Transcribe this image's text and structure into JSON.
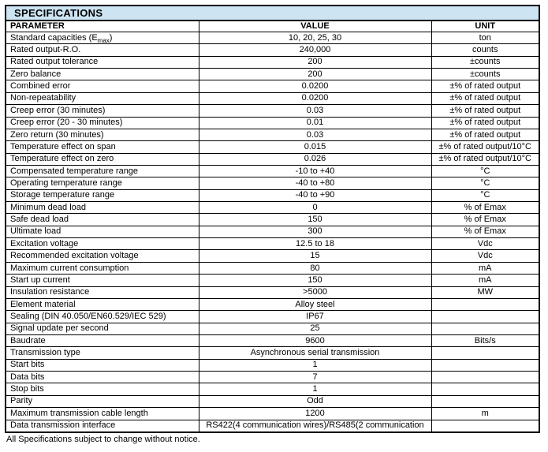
{
  "page": {
    "title": "SPECIFICATIONS",
    "footnote": "All Specifications subject to change without notice."
  },
  "colors": {
    "title_bar_bg": "#cde4f2",
    "border": "#000000",
    "text": "#000000"
  },
  "table": {
    "columns": [
      "PARAMETER",
      "VALUE",
      "UNIT"
    ],
    "rows": [
      {
        "parameter": "Standard capacities (E",
        "parameter_sub": "max",
        "parameter_end": ")",
        "value": "10, 20, 25, 30",
        "unit": "ton"
      },
      {
        "parameter": "Rated output-R.O.",
        "value": "240,000",
        "unit": "counts"
      },
      {
        "parameter": "Rated output tolerance",
        "value": "200",
        "unit": "±counts"
      },
      {
        "parameter": "Zero balance",
        "value": "200",
        "unit": "±counts"
      },
      {
        "parameter": "Combined error",
        "value": "0.0200",
        "unit": "±% of rated output"
      },
      {
        "parameter": "Non-repeatability",
        "value": "0.0200",
        "unit": "±% of rated output"
      },
      {
        "parameter": "Creep error (30 minutes)",
        "value": "0.03",
        "unit": "±% of rated output"
      },
      {
        "parameter": "Creep error (20 - 30 minutes)",
        "value": "0.01",
        "unit": "±% of rated output"
      },
      {
        "parameter": "Zero return (30 minutes)",
        "value": "0.03",
        "unit": "±% of rated output"
      },
      {
        "parameter": "Temperature effect on span",
        "value": "0.015",
        "unit": "±% of rated output/10°C"
      },
      {
        "parameter": "Temperature effect on zero",
        "value": "0.026",
        "unit": "±% of rated output/10°C"
      },
      {
        "parameter": "Compensated temperature range",
        "value": "-10 to +40",
        "unit": "°C"
      },
      {
        "parameter": "Operating temperature range",
        "value": "-40 to +80",
        "unit": "°C"
      },
      {
        "parameter": "Storage temperature range",
        "value": "-40 to +90",
        "unit": "°C"
      },
      {
        "parameter": "Minimum dead load",
        "value": "0",
        "unit": "% of Emax"
      },
      {
        "parameter": "Safe dead load",
        "value": "150",
        "unit": "% of Emax"
      },
      {
        "parameter": "Ultimate load",
        "value": "300",
        "unit": "% of Emax"
      },
      {
        "parameter": "Excitation voltage",
        "value": "12.5 to 18",
        "unit": "Vdc"
      },
      {
        "parameter": "Recommended excitation voltage",
        "value": "15",
        "unit": "Vdc"
      },
      {
        "parameter": "Maximum current consumption",
        "value": "80",
        "unit": "mA"
      },
      {
        "parameter": "Start up current",
        "value": "150",
        "unit": "mA"
      },
      {
        "parameter": "Insulation resistance",
        "value": ">5000",
        "unit": "MW"
      },
      {
        "parameter": "Element material",
        "value": "Alloy steel",
        "unit": ""
      },
      {
        "parameter": "Sealing (DIN 40.050/EN60.529/IEC 529)",
        "value": "IP67",
        "unit": ""
      },
      {
        "parameter": "Signal update per second",
        "value": "25",
        "unit": ""
      },
      {
        "parameter": "Baudrate",
        "value": "9600",
        "unit": "Bits/s"
      },
      {
        "parameter": "Transmission type",
        "value": "Asynchronous serial transmission",
        "unit": ""
      },
      {
        "parameter": "Start bits",
        "value": "1",
        "unit": ""
      },
      {
        "parameter": "Data bits",
        "value": "7",
        "unit": ""
      },
      {
        "parameter": "Stop bits",
        "value": "1",
        "unit": ""
      },
      {
        "parameter": "Parity",
        "value": "Odd",
        "unit": ""
      },
      {
        "parameter": "Maximum transmission cable length",
        "value": "1200",
        "unit": "m"
      },
      {
        "parameter": "Data transmission interface",
        "value": "RS422(4 communication wires)/RS485(2 communication",
        "unit": ""
      }
    ]
  }
}
